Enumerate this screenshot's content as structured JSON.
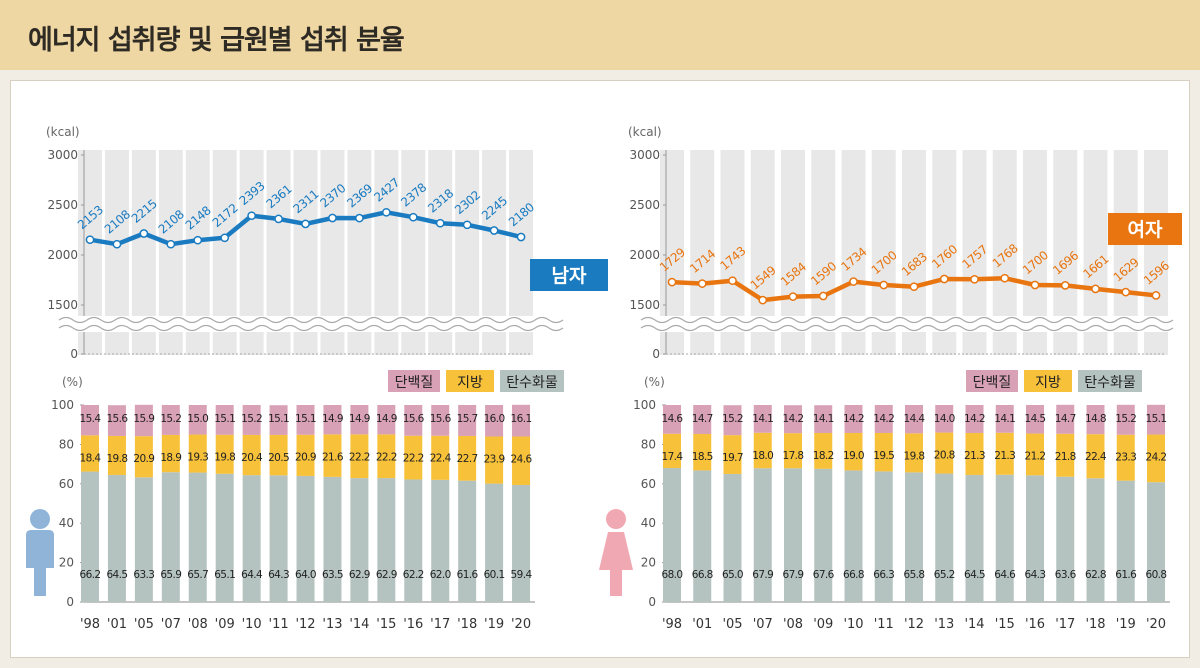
{
  "page_title": "에너지 섭취량 및 급원별 섭취 분율",
  "energy_unit": "(kcal)",
  "share_unit": "(%)",
  "energy_ticks": [
    "3000",
    "2500",
    "2000",
    "1500",
    "0"
  ],
  "share_ticks": [
    "100",
    "80",
    "60",
    "40",
    "20",
    "0"
  ],
  "legend": {
    "protein": "단백질",
    "fat": "지방",
    "carb": "탄수화물"
  },
  "colors": {
    "male_line": "#1a7bc1",
    "female_line": "#e87510",
    "protein": "#d9a1b5",
    "fat": "#f8c13a",
    "carb": "#b5c3c0",
    "male_badge": "#1a7bc1",
    "female_badge": "#e87510"
  },
  "chart_data": [
    {
      "type": "line",
      "name": "남자",
      "ylabel": "(kcal)",
      "ylim": [
        0,
        3000
      ],
      "categories": [
        "'98",
        "'01",
        "'05",
        "'07",
        "'08",
        "'09",
        "'10",
        "'11",
        "'12",
        "'13",
        "'14",
        "'15",
        "'16",
        "'17",
        "'18",
        "'19",
        "'20"
      ],
      "values": [
        2153,
        2108,
        2215,
        2108,
        2148,
        2172,
        2393,
        2361,
        2311,
        2370,
        2369,
        2427,
        2378,
        2318,
        2302,
        2245,
        2180
      ]
    },
    {
      "type": "line",
      "name": "여자",
      "ylabel": "(kcal)",
      "ylim": [
        0,
        3000
      ],
      "categories": [
        "'98",
        "'01",
        "'05",
        "'07",
        "'08",
        "'09",
        "'10",
        "'11",
        "'12",
        "'13",
        "'14",
        "'15",
        "'16",
        "'17",
        "'18",
        "'19",
        "'20"
      ],
      "values": [
        1729,
        1714,
        1743,
        1549,
        1584,
        1590,
        1734,
        1700,
        1683,
        1760,
        1757,
        1768,
        1700,
        1696,
        1661,
        1629,
        1596
      ]
    },
    {
      "type": "bar",
      "name": "남자",
      "ylabel": "(%)",
      "ylim": [
        0,
        100
      ],
      "categories": [
        "'98",
        "'01",
        "'05",
        "'07",
        "'08",
        "'09",
        "'10",
        "'11",
        "'12",
        "'13",
        "'14",
        "'15",
        "'16",
        "'17",
        "'18",
        "'19",
        "'20"
      ],
      "series": [
        {
          "name": "탄수화물",
          "values": [
            66.2,
            64.5,
            63.3,
            65.9,
            65.7,
            65.1,
            64.4,
            64.3,
            64.0,
            63.5,
            62.9,
            62.9,
            62.2,
            62.0,
            61.6,
            60.1,
            59.4
          ]
        },
        {
          "name": "지방",
          "values": [
            18.4,
            19.8,
            20.9,
            18.9,
            19.3,
            19.8,
            20.4,
            20.5,
            20.9,
            21.6,
            22.2,
            22.2,
            22.2,
            22.4,
            22.7,
            23.9,
            24.6
          ]
        },
        {
          "name": "단백질",
          "values": [
            15.4,
            15.6,
            15.9,
            15.2,
            15.0,
            15.1,
            15.2,
            15.1,
            15.1,
            14.9,
            14.9,
            14.9,
            15.6,
            15.6,
            15.7,
            16.0,
            16.1
          ]
        }
      ]
    },
    {
      "type": "bar",
      "name": "여자",
      "ylabel": "(%)",
      "ylim": [
        0,
        100
      ],
      "categories": [
        "'98",
        "'01",
        "'05",
        "'07",
        "'08",
        "'09",
        "'10",
        "'11",
        "'12",
        "'13",
        "'14",
        "'15",
        "'16",
        "'17",
        "'18",
        "'19",
        "'20"
      ],
      "series": [
        {
          "name": "탄수화물",
          "values": [
            68.0,
            66.8,
            65.0,
            67.9,
            67.9,
            67.6,
            66.8,
            66.3,
            65.8,
            65.2,
            64.5,
            64.6,
            64.3,
            63.6,
            62.8,
            61.6,
            60.8
          ]
        },
        {
          "name": "지방",
          "values": [
            17.4,
            18.5,
            19.7,
            18.0,
            17.8,
            18.2,
            19.0,
            19.5,
            19.8,
            20.8,
            21.3,
            21.3,
            21.2,
            21.8,
            22.4,
            23.3,
            24.2
          ]
        },
        {
          "name": "단백질",
          "values": [
            14.6,
            14.7,
            15.2,
            14.1,
            14.2,
            14.1,
            14.2,
            14.2,
            14.4,
            14.0,
            14.2,
            14.1,
            14.5,
            14.7,
            14.8,
            15.2,
            15.1
          ]
        }
      ]
    }
  ]
}
